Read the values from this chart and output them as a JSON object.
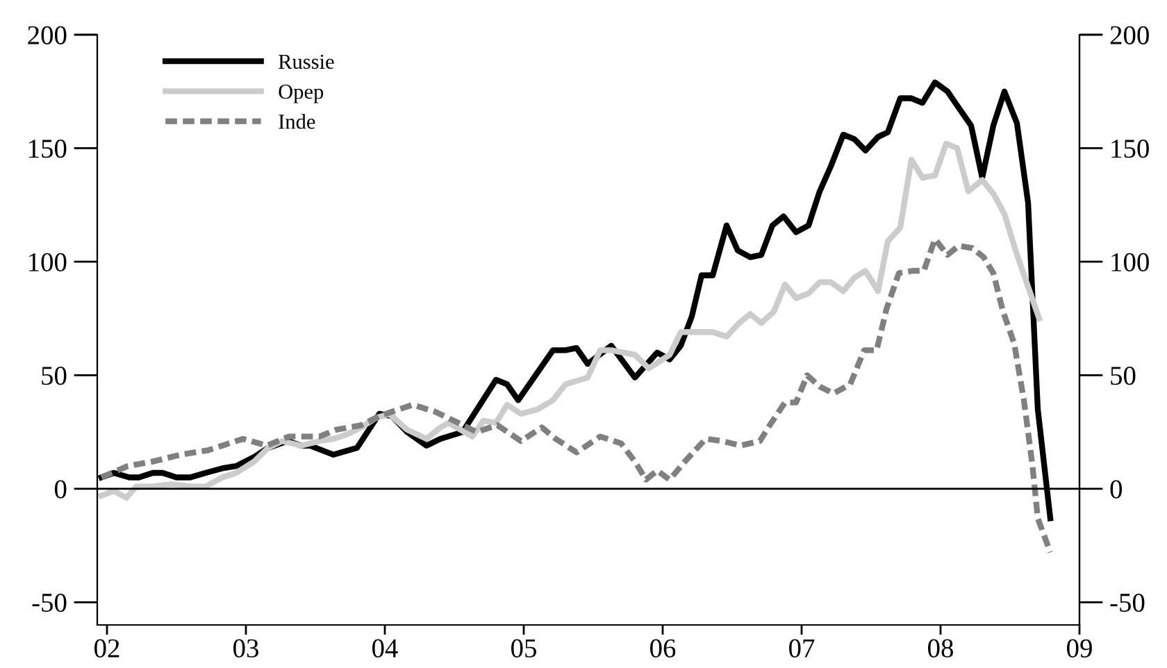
{
  "chart_data": {
    "type": "line",
    "xlim": [
      2001.93,
      2009
    ],
    "xticks": [
      {
        "value": 2002,
        "label": "02"
      },
      {
        "value": 2003,
        "label": "03"
      },
      {
        "value": 2004,
        "label": "04"
      },
      {
        "value": 2005,
        "label": "05"
      },
      {
        "value": 2006,
        "label": "06"
      },
      {
        "value": 2007,
        "label": "07"
      },
      {
        "value": 2008,
        "label": "08"
      },
      {
        "value": 2009,
        "label": "09"
      }
    ],
    "ylim": [
      -60,
      200
    ],
    "yticks": [
      -50,
      0,
      50,
      100,
      150,
      200
    ],
    "y2lim": [
      -60,
      200
    ],
    "y2ticks": [
      -50,
      0,
      50,
      100,
      150,
      200
    ],
    "ref_lines": [
      {
        "axis": "y",
        "value": 0,
        "color": "#000000"
      }
    ],
    "grid": false,
    "legend": "top left",
    "series": [
      {
        "name": "Russie",
        "color": "#000000",
        "line_style": "solid",
        "x": [
          2001.96,
          2002.05,
          2002.16,
          2002.23,
          2002.33,
          2002.4,
          2002.5,
          2002.6,
          2002.71,
          2002.83,
          2002.93,
          2003.06,
          2003.16,
          2003.3,
          2003.4,
          2003.46,
          2003.63,
          2003.8,
          2003.96,
          2004.05,
          2004.16,
          2004.3,
          2004.4,
          2004.56,
          2004.8,
          2004.88,
          2004.96,
          2005.21,
          2005.3,
          2005.38,
          2005.46,
          2005.63,
          2005.8,
          2005.96,
          2006.05,
          2006.13,
          2006.21,
          2006.28,
          2006.36,
          2006.46,
          2006.54,
          2006.63,
          2006.71,
          2006.79,
          2006.87,
          2006.96,
          2007.05,
          2007.13,
          2007.21,
          2007.3,
          2007.38,
          2007.46,
          2007.55,
          2007.62,
          2007.71,
          2007.79,
          2007.87,
          2007.96,
          2008.05,
          2008.14,
          2008.22,
          2008.3,
          2008.38,
          2008.46,
          2008.55,
          2008.63,
          2008.7,
          2008.79
        ],
        "values": [
          5,
          7,
          5,
          5,
          7,
          7,
          5,
          5,
          7,
          9,
          10,
          14,
          18,
          21,
          19,
          19,
          15,
          18,
          33,
          32,
          25,
          19,
          22,
          25,
          48,
          46,
          39,
          61,
          61,
          62,
          55,
          63,
          49,
          60,
          57,
          63,
          76,
          94,
          94,
          116,
          105,
          102,
          103,
          116,
          120,
          113,
          116,
          131,
          142,
          156,
          154,
          149,
          155,
          157,
          172,
          172,
          170,
          179,
          175,
          167,
          160,
          137,
          160,
          175,
          161,
          126,
          35,
          -13
        ]
      },
      {
        "name": "Opep",
        "color": "#cccccc",
        "line_style": "solid",
        "x": [
          2001.96,
          2002.05,
          2002.14,
          2002.21,
          2002.33,
          2002.46,
          2002.61,
          2002.71,
          2002.83,
          2002.93,
          2003.06,
          2003.16,
          2003.26,
          2003.4,
          2003.53,
          2003.63,
          2003.73,
          2003.83,
          2003.93,
          2004.03,
          2004.16,
          2004.3,
          2004.4,
          2004.46,
          2004.63,
          2004.71,
          2004.8,
          2004.88,
          2004.98,
          2005.1,
          2005.21,
          2005.3,
          2005.46,
          2005.55,
          2005.63,
          2005.8,
          2005.9,
          2006.05,
          2006.13,
          2006.23,
          2006.36,
          2006.46,
          2006.55,
          2006.63,
          2006.71,
          2006.8,
          2006.88,
          2006.96,
          2007.05,
          2007.13,
          2007.21,
          2007.3,
          2007.38,
          2007.46,
          2007.55,
          2007.62,
          2007.71,
          2007.79,
          2007.87,
          2007.96,
          2008.04,
          2008.12,
          2008.2,
          2008.3,
          2008.38,
          2008.46,
          2008.54,
          2008.63,
          2008.71
        ],
        "values": [
          -3,
          -1,
          -4,
          1,
          1,
          2,
          1,
          1,
          5,
          7,
          12,
          18,
          21,
          19,
          21,
          22,
          24,
          27,
          31,
          33,
          26,
          22,
          27,
          29,
          23,
          30,
          29,
          37,
          33,
          35,
          39,
          46,
          49,
          61,
          61,
          59,
          53,
          59,
          69,
          69,
          69,
          67,
          73,
          77,
          73,
          78,
          90,
          84,
          86,
          91,
          91,
          87,
          93,
          96,
          87,
          109,
          115,
          145,
          137,
          138,
          152,
          150,
          131,
          136,
          130,
          121,
          105,
          89,
          75
        ]
      },
      {
        "name": "Inde",
        "color": "#808080",
        "line_style": "dashed",
        "x": [
          2001.96,
          2002.15,
          2002.33,
          2002.53,
          2002.73,
          2002.83,
          2002.98,
          2003.15,
          2003.31,
          2003.53,
          2003.65,
          2003.83,
          2003.96,
          2004.2,
          2004.36,
          2004.53,
          2004.66,
          2004.81,
          2004.98,
          2005.13,
          2005.23,
          2005.38,
          2005.55,
          2005.7,
          2005.8,
          2005.88,
          2005.96,
          2006.05,
          2006.16,
          2006.31,
          2006.43,
          2006.56,
          2006.7,
          2006.76,
          2006.88,
          2006.96,
          2007.04,
          2007.13,
          2007.23,
          2007.35,
          2007.45,
          2007.54,
          2007.61,
          2007.7,
          2007.8,
          2007.88,
          2007.96,
          2008.05,
          2008.13,
          2008.23,
          2008.31,
          2008.38,
          2008.45,
          2008.53,
          2008.6,
          2008.66,
          2008.7,
          2008.79
        ],
        "values": [
          5,
          10,
          12,
          15,
          17,
          19,
          22,
          19,
          23,
          23,
          26,
          28,
          32,
          37,
          34,
          29,
          25,
          28,
          21,
          27,
          22,
          16,
          23,
          20,
          12,
          4,
          8,
          4,
          12,
          22,
          21,
          19,
          21,
          27,
          38,
          38,
          50,
          45,
          42,
          46,
          61,
          61,
          79,
          95,
          96,
          96,
          110,
          103,
          107,
          106,
          102,
          95,
          78,
          64,
          39,
          11,
          -13,
          -28
        ]
      }
    ]
  }
}
